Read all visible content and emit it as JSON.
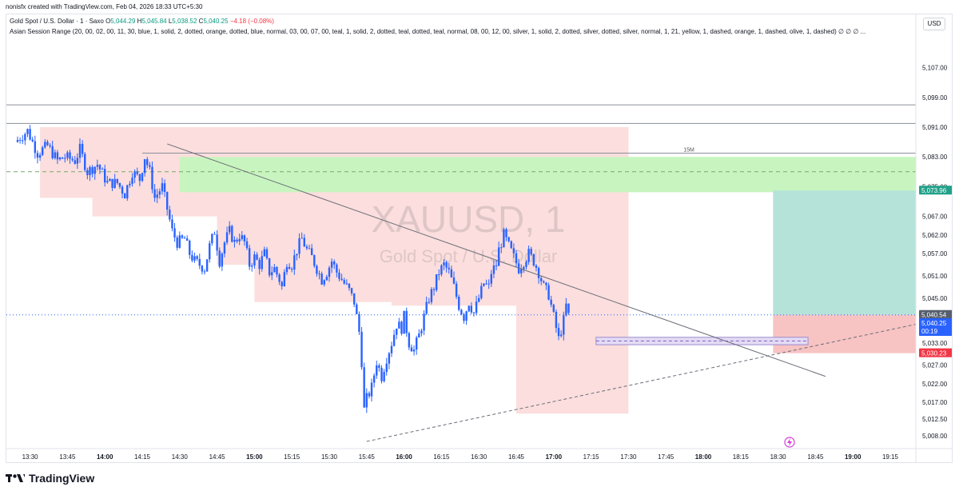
{
  "credit": "nonisfx created with TradingView.com, Feb 04, 2026 18:33 UTC+5:30",
  "legend": {
    "symbol": "Gold Spot / U.S. Dollar · 1 · Saxo",
    "o_label": "O",
    "o": "5,044.29",
    "h_label": "H",
    "h": "5,045.84",
    "l_label": "L",
    "l": "5,038.52",
    "c_label": "C",
    "c": "5,040.25",
    "change": "−4.18 (−0.08%)",
    "indicator": "Asian Session Range (20, 00, 02, 00, 11, 30, blue, 1, solid, 2, dotted, orange, dotted, blue, normal, 03, 00, 07, 00, teal, 1, solid, 2, dotted, teal, dotted, teal, normal, 08, 00, 12, 00, silver, 1, solid, 2, dotted, silver, dotted, silver, normal, 1, 21, yellow, 1, dashed, orange, 1, dashed, olive, 1, dashed)  ∅  ∅  ∅ ..."
  },
  "currency_button": "USD",
  "watermark": {
    "symbol": "XAUUSD, 1",
    "name": "Gold Spot / U.S. Dollar"
  },
  "footer": {
    "brand": "TradingView"
  },
  "colors": {
    "up": "#2962ff",
    "down": "#2962ff",
    "zone_red": "#fbdedd",
    "zone_green": "#c8f5bf",
    "target": "#b5e3d9",
    "stop": "#f7c3c3",
    "badge_teal": "#22a189",
    "badge_red": "#f23645",
    "badge_grey": "#555e6c",
    "badge_blue": "#2962ff"
  },
  "chart_data": {
    "type": "candlestick",
    "symbol": "XAUUSD",
    "timeframe": "1",
    "ylim": [
      5005,
      5114
    ],
    "y_ticks": [
      "5,107.00",
      "5,099.00",
      "5,091.00",
      "5,083.00",
      "5,075.00",
      "5,067.00",
      "5,062.00",
      "5,057.00",
      "5,051.00",
      "5,045.00",
      "5,033.00",
      "5,027.00",
      "5,022.00",
      "5,017.00",
      "5,012.50",
      "5,008.00"
    ],
    "x_ticks": [
      {
        "label": "13:30",
        "bold": false
      },
      {
        "label": "13:45",
        "bold": false
      },
      {
        "label": "14:00",
        "bold": true
      },
      {
        "label": "14:15",
        "bold": false
      },
      {
        "label": "14:30",
        "bold": false
      },
      {
        "label": "14:45",
        "bold": false
      },
      {
        "label": "15:00",
        "bold": true
      },
      {
        "label": "15:15",
        "bold": false
      },
      {
        "label": "15:30",
        "bold": false
      },
      {
        "label": "15:45",
        "bold": false
      },
      {
        "label": "16:00",
        "bold": true
      },
      {
        "label": "16:15",
        "bold": false
      },
      {
        "label": "16:30",
        "bold": false
      },
      {
        "label": "16:45",
        "bold": false
      },
      {
        "label": "17:00",
        "bold": true
      },
      {
        "label": "17:15",
        "bold": false
      },
      {
        "label": "17:30",
        "bold": false
      },
      {
        "label": "17:45",
        "bold": false
      },
      {
        "label": "18:00",
        "bold": true
      },
      {
        "label": "18:15",
        "bold": false
      },
      {
        "label": "18:30",
        "bold": false
      },
      {
        "label": "18:45",
        "bold": false
      },
      {
        "label": "19:00",
        "bold": true
      },
      {
        "label": "19:15",
        "bold": false
      }
    ],
    "x_start": "13:25",
    "price_path": [
      [
        0,
        5087
      ],
      [
        5,
        5090
      ],
      [
        9,
        5084
      ],
      [
        13,
        5086
      ],
      [
        17,
        5082
      ],
      [
        20,
        5083
      ],
      [
        24,
        5082
      ],
      [
        26,
        5085
      ],
      [
        29,
        5079
      ],
      [
        33,
        5081
      ],
      [
        37,
        5076
      ],
      [
        41,
        5076
      ],
      [
        44,
        5073
      ],
      [
        47,
        5079
      ],
      [
        50,
        5077
      ],
      [
        52,
        5083
      ],
      [
        54,
        5079
      ],
      [
        56,
        5072
      ],
      [
        59,
        5075
      ],
      [
        61,
        5069
      ],
      [
        63,
        5063
      ],
      [
        65,
        5060
      ],
      [
        68,
        5061
      ],
      [
        70,
        5057
      ],
      [
        72,
        5055
      ],
      [
        74,
        5054
      ],
      [
        76,
        5053
      ],
      [
        78,
        5059
      ],
      [
        80,
        5063
      ],
      [
        82,
        5055
      ],
      [
        84,
        5060
      ],
      [
        86,
        5063
      ],
      [
        88,
        5060
      ],
      [
        90,
        5062
      ],
      [
        92,
        5060
      ],
      [
        94,
        5054
      ],
      [
        96,
        5056
      ],
      [
        98,
        5054
      ],
      [
        100,
        5057
      ],
      [
        102,
        5052
      ],
      [
        104,
        5053
      ],
      [
        106,
        5050
      ],
      [
        107,
        5048
      ],
      [
        109,
        5055
      ],
      [
        111,
        5054
      ],
      [
        113,
        5058
      ],
      [
        115,
        5061
      ],
      [
        117,
        5058
      ],
      [
        119,
        5056
      ],
      [
        121,
        5053
      ],
      [
        123,
        5050
      ],
      [
        125,
        5052
      ],
      [
        127,
        5055
      ],
      [
        129,
        5052
      ],
      [
        131,
        5050
      ],
      [
        132,
        5049
      ],
      [
        134,
        5047
      ],
      [
        136,
        5044
      ],
      [
        138,
        5036
      ],
      [
        139,
        5028
      ],
      [
        140,
        5015
      ],
      [
        141,
        5018
      ],
      [
        143,
        5021
      ],
      [
        145,
        5028
      ],
      [
        147,
        5024
      ],
      [
        149,
        5029
      ],
      [
        151,
        5033
      ],
      [
        153,
        5038
      ],
      [
        155,
        5037
      ],
      [
        156,
        5040
      ],
      [
        158,
        5033
      ],
      [
        160,
        5031
      ],
      [
        162,
        5035
      ],
      [
        164,
        5040
      ],
      [
        166,
        5045
      ],
      [
        168,
        5048
      ],
      [
        170,
        5052
      ],
      [
        172,
        5054
      ],
      [
        174,
        5052
      ],
      [
        176,
        5048
      ],
      [
        178,
        5043
      ],
      [
        180,
        5040
      ],
      [
        182,
        5044
      ],
      [
        184,
        5041
      ],
      [
        186,
        5045
      ],
      [
        188,
        5049
      ],
      [
        190,
        5048
      ],
      [
        191,
        5052
      ],
      [
        193,
        5054
      ],
      [
        194,
        5058
      ],
      [
        196,
        5062
      ],
      [
        198,
        5059
      ],
      [
        200,
        5056
      ],
      [
        202,
        5053
      ],
      [
        204,
        5055
      ],
      [
        206,
        5057
      ],
      [
        208,
        5055
      ],
      [
        210,
        5052
      ],
      [
        212,
        5048
      ],
      [
        214,
        5046
      ],
      [
        215,
        5043
      ],
      [
        216,
        5040
      ],
      [
        218,
        5034
      ],
      [
        220,
        5039
      ],
      [
        221,
        5043
      ],
      [
        222,
        5040.25
      ]
    ],
    "zones": [
      {
        "kind": "session",
        "from": "13:34",
        "to": "17:30",
        "low": 5072,
        "high": 5091
      },
      {
        "kind": "session",
        "from": "13:55",
        "to": "17:30",
        "low": 5067,
        "high": 5091
      },
      {
        "kind": "session",
        "from": "14:45",
        "to": "17:30",
        "low": 5054,
        "high": 5091
      },
      {
        "kind": "session",
        "from": "15:00",
        "to": "17:30",
        "low": 5044,
        "high": 5091
      },
      {
        "kind": "session",
        "from": "15:55",
        "to": "17:30",
        "low": 5043,
        "high": 5091
      },
      {
        "kind": "session",
        "from": "16:45",
        "to": "17:30",
        "low": 5014,
        "high": 5091
      },
      {
        "kind": "demand",
        "from": "14:30",
        "to": "19:40",
        "low": 5073.5,
        "high": 5083
      },
      {
        "kind": "target",
        "from": "18:28",
        "to": "19:40",
        "low": 5040.54,
        "high": 5073.96
      },
      {
        "kind": "stop",
        "from": "18:28",
        "to": "19:40",
        "low": 5030.23,
        "high": 5040.54
      },
      {
        "kind": "fvg",
        "from": "17:17",
        "to": "18:42",
        "low": 5032.5,
        "high": 5034.5
      }
    ],
    "horizontal_lines": [
      {
        "price": 5097,
        "style": "solid"
      },
      {
        "price": 5092,
        "style": "solid"
      },
      {
        "price": 5084,
        "style": "solid",
        "label": "15M",
        "from": "14:15",
        "to": "19:40"
      },
      {
        "price": 5079,
        "style": "dashed"
      },
      {
        "price": 5040.54,
        "style": "dotted"
      }
    ],
    "trendlines": [
      {
        "from": [
          "14:25",
          5086.5
        ],
        "to": [
          "18:49",
          5024
        ],
        "style": "solid"
      },
      {
        "from": [
          "15:45",
          5006.5
        ],
        "to": [
          "19:40",
          5038
        ],
        "style": "dashed"
      }
    ],
    "price_badges": [
      {
        "label": "5,073.96",
        "kind": "teal"
      },
      {
        "label": "5,040.54",
        "kind": "grey"
      },
      {
        "label": "5,040.25",
        "sub": "00:19",
        "kind": "blue"
      },
      {
        "label": "5,030.23",
        "kind": "red"
      }
    ],
    "watermark_opacity": 0.12
  }
}
